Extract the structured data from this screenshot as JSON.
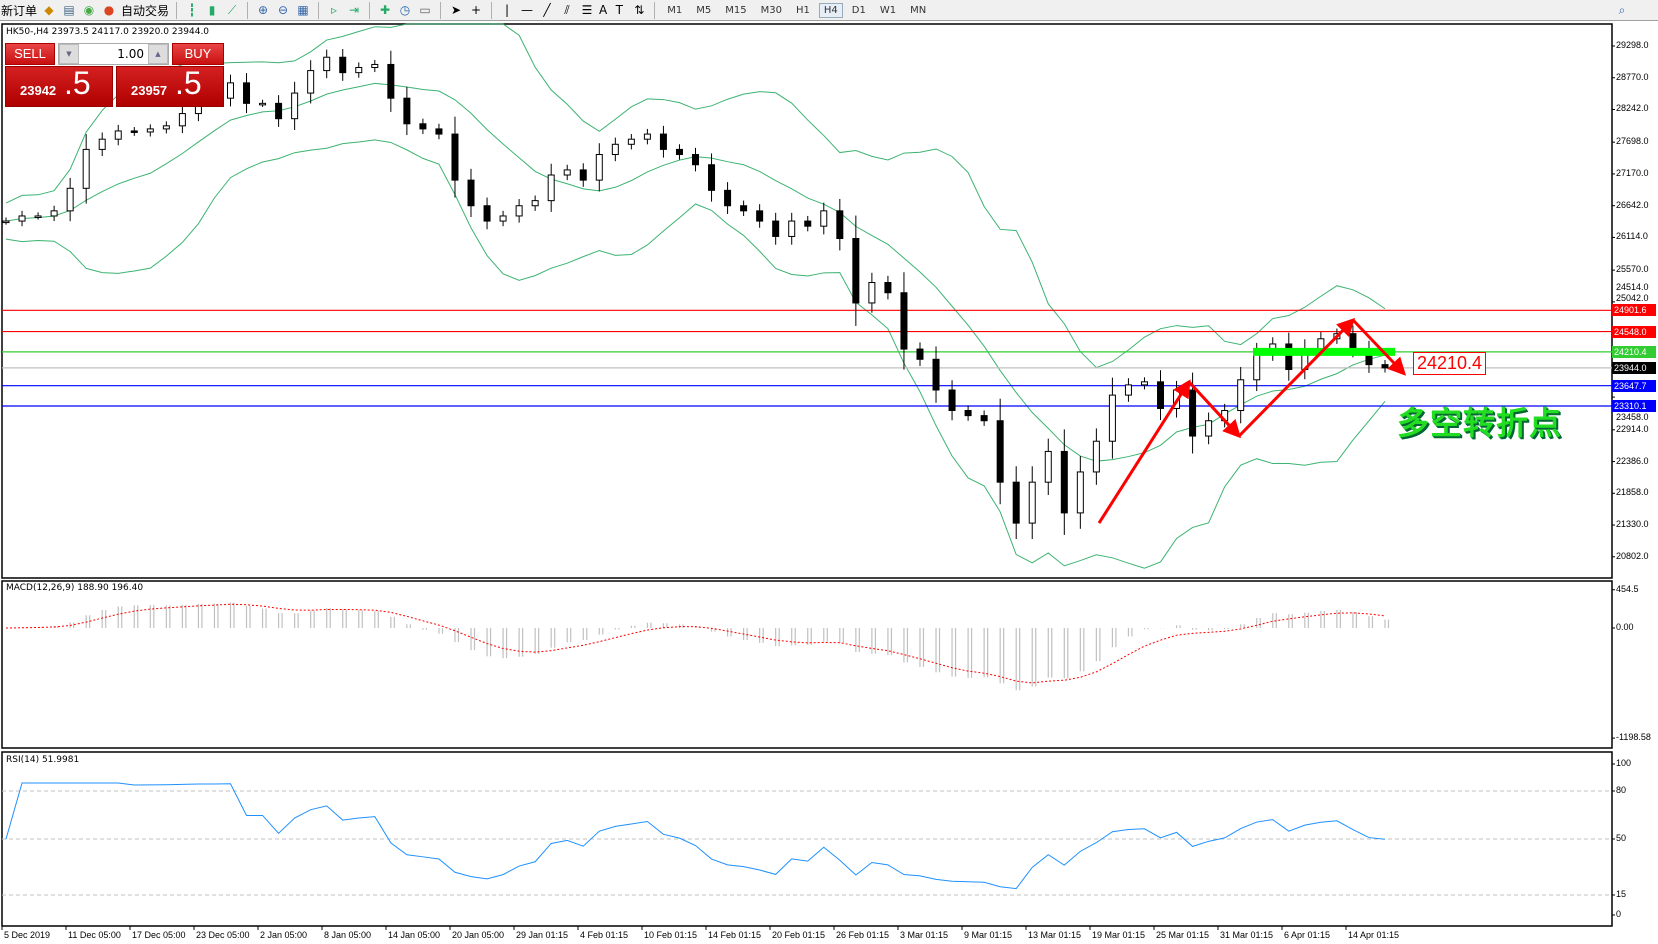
{
  "toolbar": {
    "new_order": "新订单",
    "auto_trading": "自动交易",
    "icons": [
      "new-order-icon",
      "meta-editor-icon",
      "navigator-icon",
      "auto-trading-icon",
      "bar-chart-icon",
      "candle-chart-icon",
      "line-chart-icon",
      "zoom-in-icon",
      "zoom-out-icon",
      "tile-windows-icon",
      "auto-scroll-icon",
      "chart-shift-icon",
      "indicators-icon",
      "periods-icon",
      "templates-icon",
      "cursor-icon",
      "crosshair-icon",
      "vertical-line-icon",
      "horizontal-line-icon",
      "trendline-icon",
      "fibonacci-fan-icon",
      "fibonacci-icon",
      "text-icon",
      "text-label-icon",
      "arrows-icon"
    ],
    "timeframes": [
      "M1",
      "M5",
      "M15",
      "M30",
      "H1",
      "H4",
      "D1",
      "W1",
      "MN"
    ],
    "active_timeframe": "H4",
    "text_tool": "A",
    "search_icon": "search-icon"
  },
  "chart": {
    "header": "HK50-,H4  23973.5 24117.0 23920.0 23944.0",
    "one_click": {
      "sell_label": "SELL",
      "buy_label": "BUY",
      "lot": "1.00",
      "sell_price_main": "23942",
      "sell_price_pip": ".5",
      "buy_price_main": "23957",
      "buy_price_pip": ".5"
    },
    "price_axis": [
      "29298.0",
      "28770.0",
      "28242.0",
      "27698.0",
      "27170.0",
      "26642.0",
      "26114.0",
      "25570.0",
      "25042.0",
      "24514.0",
      "23458.0",
      "22914.0",
      "22386.0",
      "21858.0",
      "21330.0",
      "20802.0"
    ],
    "levels": [
      {
        "value": 24901.6,
        "label": "24901.6",
        "color": "#ff0000"
      },
      {
        "value": 24548.0,
        "label": "24548.0",
        "color": "#ff0000"
      },
      {
        "value": 24210.4,
        "label": "24210.4",
        "color": "#33cc33"
      },
      {
        "value": 23944.0,
        "label": "23944.0",
        "color": "#000000",
        "line_color": "#c0c0c0"
      },
      {
        "value": 23647.7,
        "label": "23647.7",
        "color": "#0000ff"
      },
      {
        "value": 23310.1,
        "label": "23310.1",
        "color": "#0000ff"
      }
    ],
    "annotation_price": "24210.4",
    "annotation_text": "多空转折点",
    "zigzag_prices": [
      21362,
      23712,
      22810,
      24740,
      23850
    ],
    "candle_color_up": "#ffffff",
    "candle_color_down": "#000000",
    "bands_color": "#3cb371"
  },
  "chart_data": {
    "type": "candlestick",
    "symbol": "HK50-",
    "timeframe": "H4",
    "closes": [
      26386,
      26471,
      26471,
      26556,
      26931,
      27578,
      27748,
      27885,
      27868,
      27919,
      27970,
      28174,
      28395,
      28430,
      28685,
      28344,
      28344,
      28089,
      28515,
      28889,
      29111,
      28855,
      28940,
      28991,
      28430,
      28004,
      27919,
      27833,
      27067,
      26641,
      26386,
      26471,
      26641,
      26726,
      27152,
      27237,
      27067,
      27493,
      27663,
      27748,
      27833,
      27578,
      27493,
      27323,
      26897,
      26641,
      26556,
      26386,
      26130,
      26386,
      26301,
      26556,
      26096,
      25024,
      25364,
      25194,
      24257,
      24087,
      23576,
      23235,
      23150,
      23065,
      22043,
      21362,
      22043,
      22554,
      21532,
      22213,
      22724,
      23491,
      23661,
      23712,
      23269,
      23576,
      22810,
      23065,
      23235,
      23746,
      24172,
      24342,
      23917,
      24257,
      24428,
      24513,
      24257,
      23998,
      23944
    ],
    "ylim": [
      20802,
      29298
    ],
    "x_tick_labels": [
      "5 Dec 2019",
      "11 Dec 05:00",
      "17 Dec 05:00",
      "23 Dec 05:00",
      "2 Jan 05:00",
      "8 Jan 05:00",
      "14 Jan 05:00",
      "20 Jan 05:00",
      "29 Jan 01:15",
      "4 Feb 01:15",
      "10 Feb 01:15",
      "14 Feb 01:15",
      "20 Feb 01:15",
      "26 Feb 01:15",
      "3 Mar 01:15",
      "9 Mar 01:15",
      "13 Mar 01:15",
      "19 Mar 01:15",
      "25 Mar 01:15",
      "31 Mar 01:15",
      "6 Apr 01:15",
      "14 Apr 01:15"
    ],
    "macd": {
      "label": "MACD(12,26,9) 188.90 196.40",
      "axis": [
        "454.5",
        "0.00",
        "-1198.58"
      ],
      "ylim": [
        -1198.58,
        454.5
      ],
      "histogram_color": "#c0c0c0",
      "signal_color": "#ff0000"
    },
    "rsi": {
      "label": "RSI(14) 51.9981",
      "axis": [
        "100",
        "80",
        "50",
        "15",
        "0"
      ],
      "levels": [
        80,
        50,
        15
      ],
      "color": "#1e90ff"
    }
  }
}
